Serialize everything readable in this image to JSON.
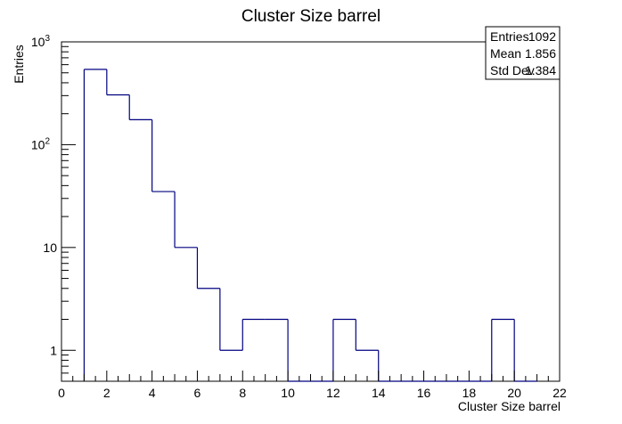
{
  "chart_data": {
    "type": "bar",
    "title": "Cluster Size barrel",
    "xlabel": "Cluster Size barrel",
    "ylabel": "Entries",
    "xlim": [
      0,
      22
    ],
    "ylim": [
      0.5,
      1000
    ],
    "yscale": "log",
    "x_ticks": [
      "0",
      "2",
      "4",
      "6",
      "8",
      "10",
      "12",
      "14",
      "16",
      "18",
      "20",
      "22"
    ],
    "y_ticks": [
      {
        "value": 1,
        "label": "1",
        "exp": ""
      },
      {
        "value": 10,
        "label": "10",
        "exp": ""
      },
      {
        "value": 100,
        "label": "10",
        "exp": "2"
      },
      {
        "value": 1000,
        "label": "10",
        "exp": "3"
      }
    ],
    "bins": [
      {
        "x0": 1,
        "x1": 2,
        "value": 540
      },
      {
        "x0": 2,
        "x1": 3,
        "value": 305
      },
      {
        "x0": 3,
        "x1": 4,
        "value": 175
      },
      {
        "x0": 4,
        "x1": 5,
        "value": 35
      },
      {
        "x0": 5,
        "x1": 6,
        "value": 10
      },
      {
        "x0": 6,
        "x1": 7,
        "value": 4
      },
      {
        "x0": 7,
        "x1": 8,
        "value": 1
      },
      {
        "x0": 8,
        "x1": 9,
        "value": 2
      },
      {
        "x0": 9,
        "x1": 10,
        "value": 2
      },
      {
        "x0": 10,
        "x1": 11,
        "value": 0
      },
      {
        "x0": 11,
        "x1": 12,
        "value": 0
      },
      {
        "x0": 12,
        "x1": 13,
        "value": 2
      },
      {
        "x0": 13,
        "x1": 14,
        "value": 1
      },
      {
        "x0": 14,
        "x1": 15,
        "value": 0
      },
      {
        "x0": 15,
        "x1": 16,
        "value": 0
      },
      {
        "x0": 16,
        "x1": 17,
        "value": 0
      },
      {
        "x0": 17,
        "x1": 18,
        "value": 0
      },
      {
        "x0": 18,
        "x1": 19,
        "value": 0
      },
      {
        "x0": 19,
        "x1": 20,
        "value": 2
      },
      {
        "x0": 20,
        "x1": 21,
        "value": 0
      }
    ],
    "line_color": "#000080",
    "grid": false,
    "legend_placement": "top-right",
    "stats": [
      {
        "label": "Entries",
        "value": "1092"
      },
      {
        "label": "Mean",
        "value": "1.856"
      },
      {
        "label": "Std Dev",
        "value": "1.384"
      }
    ]
  }
}
